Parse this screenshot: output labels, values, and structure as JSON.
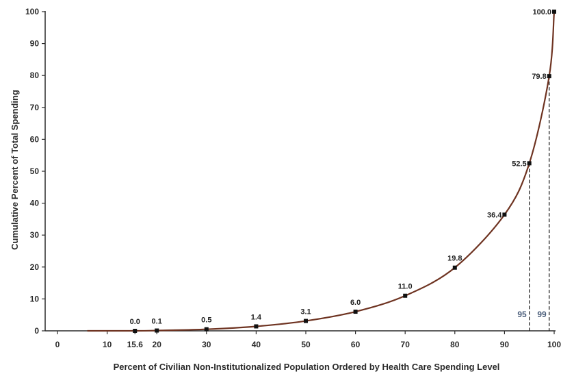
{
  "chart_data": {
    "type": "line",
    "xlabel": "Percent of Civilian Non-Institutionalized Population Ordered by Health Care Spending Level",
    "ylabel": "Cumulative Percent of Total Spending",
    "xlim": [
      0,
      100
    ],
    "ylim": [
      0,
      100
    ],
    "x_ticks": [
      0,
      10,
      15.6,
      20,
      30,
      40,
      50,
      60,
      70,
      80,
      90,
      100
    ],
    "x_tick_labels": [
      "0",
      "10",
      "15.6",
      "20",
      "30",
      "40",
      "50",
      "60",
      "70",
      "80",
      "90",
      "100"
    ],
    "y_ticks": [
      0,
      10,
      20,
      30,
      40,
      50,
      60,
      70,
      80,
      90,
      100
    ],
    "y_tick_labels": [
      "0",
      "10",
      "20",
      "30",
      "40",
      "50",
      "60",
      "70",
      "80",
      "90",
      "100"
    ],
    "grid": false,
    "line_color": "#6e3321",
    "marker_color": "#111111",
    "marker_label_color": "#4a5d7a",
    "series": [
      {
        "x": [
          15.6,
          20,
          30,
          40,
          50,
          60,
          70,
          80,
          90,
          95,
          99,
          100
        ],
        "y": [
          0.0,
          0.1,
          0.5,
          1.4,
          3.1,
          6.0,
          11.0,
          19.8,
          36.4,
          52.5,
          79.8,
          100.0
        ],
        "labels": [
          "0.0",
          "0.1",
          "0.5",
          "1.4",
          "3.1",
          "6.0",
          "11.0",
          "19.8",
          "36.4",
          "52.5",
          "79.8",
          "100.0"
        ]
      }
    ],
    "annotations": [
      {
        "x": 95,
        "y": 52.5,
        "text": "95"
      },
      {
        "x": 99,
        "y": 79.8,
        "text": "99"
      }
    ]
  }
}
